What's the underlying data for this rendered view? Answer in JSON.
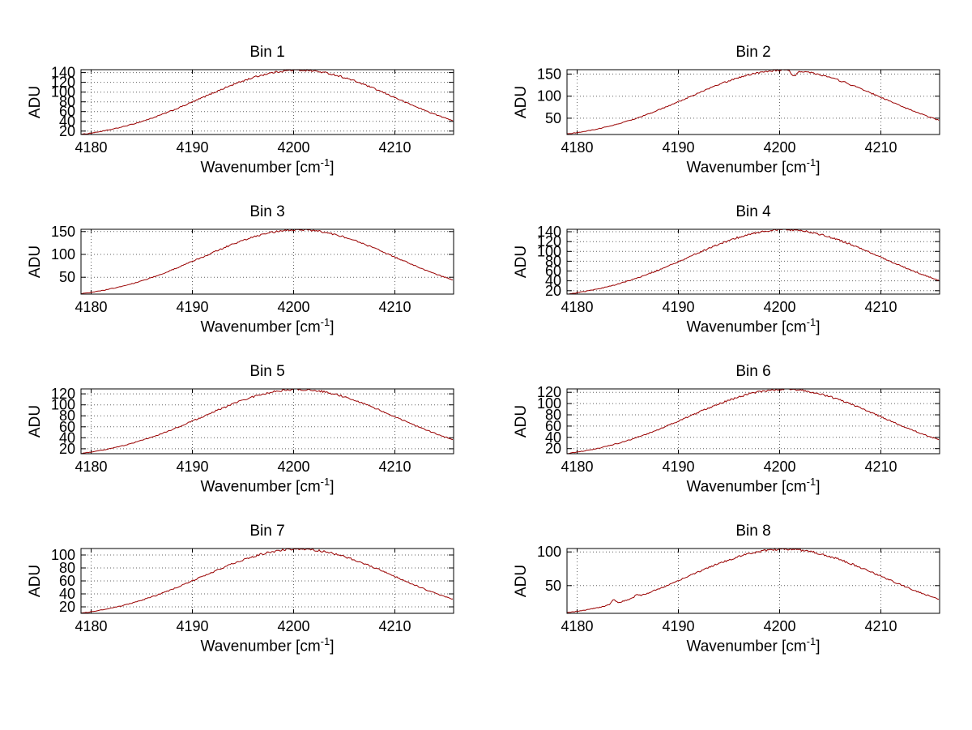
{
  "figure": {
    "background": "#ffffff",
    "line_color": "#990000"
  },
  "labels": {
    "ylabel": "ADU",
    "xlabel_main": "Wavenumber [cm",
    "xlabel_sup": "-1",
    "xlabel_close": "]"
  },
  "chart_data": [
    {
      "type": "line",
      "title": "Bin 1",
      "xlabel": "Wavenumber [cm^-1]",
      "ylabel": "ADU",
      "x_ticks": [
        4180,
        4190,
        4200,
        4210
      ],
      "y_ticks": [
        20,
        40,
        60,
        80,
        100,
        120,
        140
      ],
      "xlim": [
        4179,
        4215.8
      ],
      "ylim": [
        13,
        146
      ],
      "grid": true,
      "line_color": "#990000",
      "x_samples": [
        4180,
        4185,
        4190,
        4195,
        4200,
        4205,
        4210,
        4215
      ],
      "y_samples": [
        16,
        40,
        80,
        123,
        145,
        130,
        89,
        47
      ],
      "model": {
        "shape": "gaussian",
        "peak": 143,
        "center": 4200.5,
        "sigma": 9.5,
        "base": 2,
        "noise": 2.0,
        "anomalies": []
      }
    },
    {
      "type": "line",
      "title": "Bin 2",
      "xlabel": "Wavenumber [cm^-1]",
      "ylabel": "ADU",
      "x_ticks": [
        4180,
        4190,
        4200,
        4210
      ],
      "y_ticks": [
        50,
        100,
        150
      ],
      "xlim": [
        4179,
        4215.8
      ],
      "ylim": [
        13,
        160
      ],
      "grid": true,
      "line_color": "#990000",
      "x_samples": [
        4180,
        4185,
        4190,
        4195,
        4200,
        4205,
        4210,
        4215
      ],
      "y_samples": [
        17,
        44,
        87,
        135,
        157,
        142,
        97,
        51
      ],
      "model": {
        "shape": "gaussian",
        "peak": 157,
        "center": 4200.5,
        "sigma": 9.5,
        "base": 2,
        "noise": 2.0,
        "anomalies": [
          {
            "x": 4201.4,
            "dy": -13,
            "w": 0.25
          }
        ]
      }
    },
    {
      "type": "line",
      "title": "Bin 3",
      "xlabel": "Wavenumber [cm^-1]",
      "ylabel": "ADU",
      "x_ticks": [
        4180,
        4190,
        4200,
        4210
      ],
      "y_ticks": [
        50,
        100,
        150
      ],
      "xlim": [
        4179,
        4215.8
      ],
      "ylim": [
        13,
        155
      ],
      "grid": true,
      "line_color": "#990000",
      "x_samples": [
        4180,
        4185,
        4190,
        4195,
        4200,
        4205,
        4210,
        4215
      ],
      "y_samples": [
        17,
        42,
        85,
        131,
        152,
        138,
        94,
        49
      ],
      "model": {
        "shape": "gaussian",
        "peak": 152,
        "center": 4200.5,
        "sigma": 9.5,
        "base": 2,
        "noise": 2.0,
        "anomalies": []
      }
    },
    {
      "type": "line",
      "title": "Bin 4",
      "xlabel": "Wavenumber [cm^-1]",
      "ylabel": "ADU",
      "x_ticks": [
        4180,
        4190,
        4200,
        4210
      ],
      "y_ticks": [
        20,
        40,
        60,
        80,
        100,
        120,
        140
      ],
      "xlim": [
        4179,
        4215.8
      ],
      "ylim": [
        13,
        145
      ],
      "grid": true,
      "line_color": "#990000",
      "x_samples": [
        4180,
        4185,
        4190,
        4195,
        4200,
        4205,
        4210,
        4215
      ],
      "y_samples": [
        16,
        40,
        79,
        122,
        142,
        129,
        88,
        46
      ],
      "model": {
        "shape": "gaussian",
        "peak": 142,
        "center": 4200.5,
        "sigma": 9.5,
        "base": 2,
        "noise": 2.0,
        "anomalies": []
      }
    },
    {
      "type": "line",
      "title": "Bin 5",
      "xlabel": "Wavenumber [cm^-1]",
      "ylabel": "ADU",
      "x_ticks": [
        4180,
        4190,
        4200,
        4210
      ],
      "y_ticks": [
        20,
        40,
        60,
        80,
        100,
        120
      ],
      "xlim": [
        4179,
        4215.8
      ],
      "ylim": [
        11,
        129
      ],
      "grid": true,
      "line_color": "#990000",
      "x_samples": [
        4180,
        4185,
        4190,
        4195,
        4200,
        4205,
        4210,
        4215
      ],
      "y_samples": [
        14,
        35,
        70,
        109,
        126,
        115,
        78,
        41
      ],
      "model": {
        "shape": "gaussian",
        "peak": 126,
        "center": 4200.5,
        "sigma": 9.5,
        "base": 2,
        "noise": 1.8,
        "anomalies": []
      }
    },
    {
      "type": "line",
      "title": "Bin 6",
      "xlabel": "Wavenumber [cm^-1]",
      "ylabel": "ADU",
      "x_ticks": [
        4180,
        4190,
        4200,
        4210
      ],
      "y_ticks": [
        20,
        40,
        60,
        80,
        100,
        120
      ],
      "xlim": [
        4179,
        4215.8
      ],
      "ylim": [
        11,
        126
      ],
      "grid": true,
      "line_color": "#990000",
      "x_samples": [
        4180,
        4185,
        4190,
        4195,
        4200,
        4205,
        4210,
        4215
      ],
      "y_samples": [
        14,
        35,
        69,
        106,
        123,
        112,
        77,
        40
      ],
      "model": {
        "shape": "gaussian",
        "peak": 123,
        "center": 4200.5,
        "sigma": 9.5,
        "base": 2,
        "noise": 1.8,
        "anomalies": []
      }
    },
    {
      "type": "line",
      "title": "Bin 7",
      "xlabel": "Wavenumber [cm^-1]",
      "ylabel": "ADU",
      "x_ticks": [
        4180,
        4190,
        4200,
        4210
      ],
      "y_ticks": [
        20,
        40,
        60,
        80,
        100
      ],
      "xlim": [
        4179,
        4215.8
      ],
      "ylim": [
        10,
        110
      ],
      "grid": true,
      "line_color": "#990000",
      "x_samples": [
        4180,
        4185,
        4190,
        4195,
        4200,
        4205,
        4210,
        4215
      ],
      "y_samples": [
        12,
        30,
        60,
        93,
        107,
        98,
        67,
        35
      ],
      "model": {
        "shape": "gaussian",
        "peak": 107,
        "center": 4200.5,
        "sigma": 9.5,
        "base": 2,
        "noise": 1.6,
        "anomalies": []
      }
    },
    {
      "type": "line",
      "title": "Bin 8",
      "xlabel": "Wavenumber [cm^-1]",
      "ylabel": "ADU",
      "x_ticks": [
        4180,
        4190,
        4200,
        4210
      ],
      "y_ticks": [
        50,
        100
      ],
      "xlim": [
        4179,
        4215.8
      ],
      "ylim": [
        9,
        105
      ],
      "grid": true,
      "line_color": "#990000",
      "x_samples": [
        4180,
        4185,
        4190,
        4195,
        4200,
        4205,
        4210,
        4215
      ],
      "y_samples": [
        12,
        29,
        57,
        88,
        102,
        93,
        64,
        34
      ],
      "model": {
        "shape": "gaussian",
        "peak": 102,
        "center": 4200.5,
        "sigma": 9.5,
        "base": 2,
        "noise": 1.6,
        "anomalies": [
          {
            "x": 4183.6,
            "dy": 6,
            "w": 0.2
          },
          {
            "x": 4185.9,
            "dy": 4,
            "w": 0.18
          }
        ]
      }
    }
  ]
}
